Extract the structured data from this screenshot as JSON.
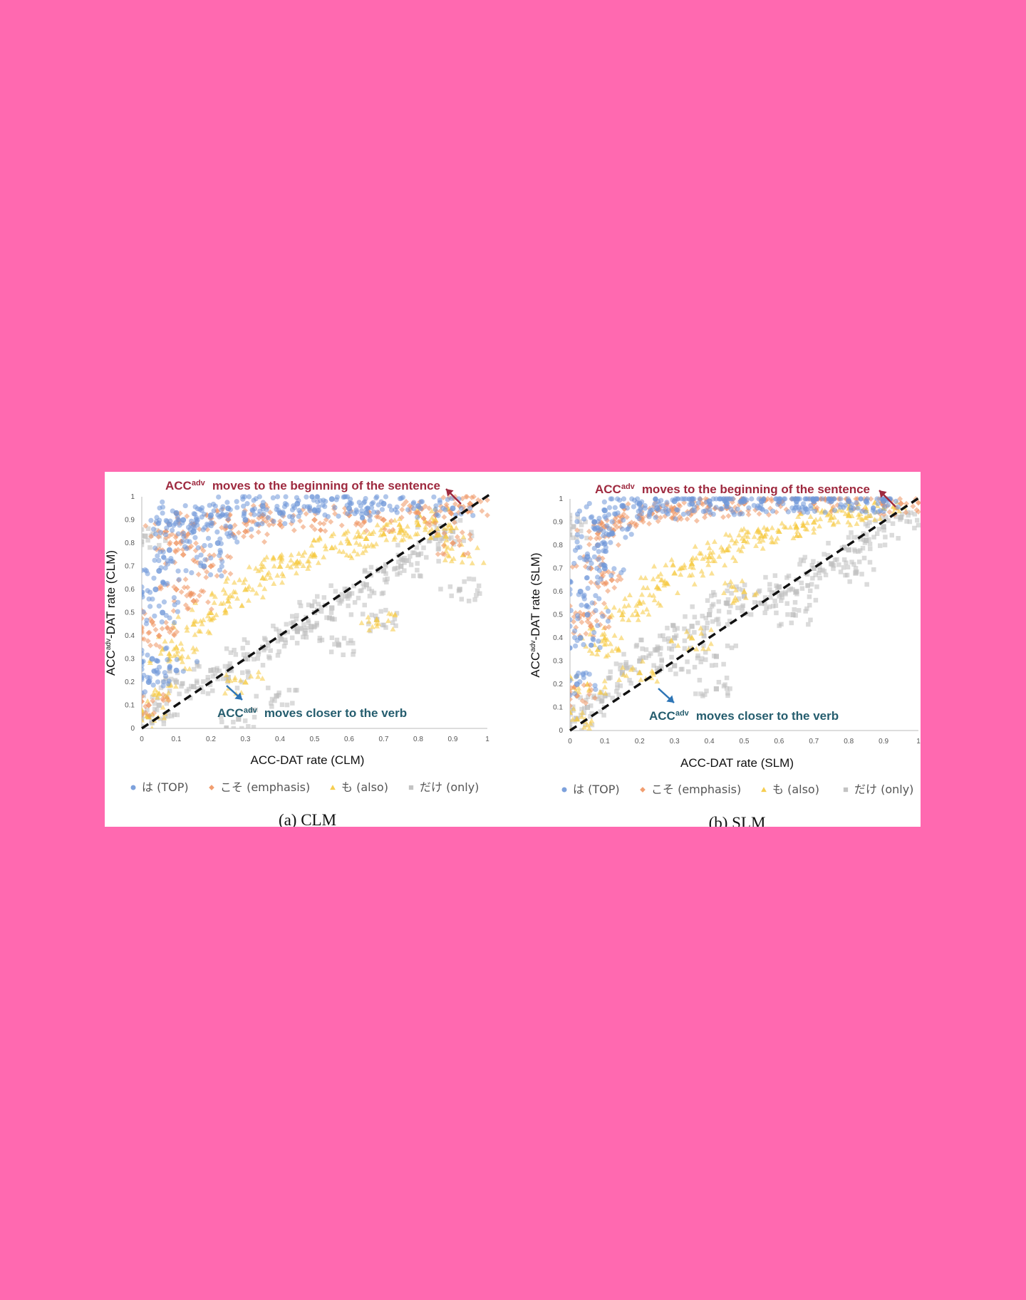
{
  "colors": {
    "background": "#ff69b0",
    "series": [
      "#6f97d8",
      "#ef9460",
      "#f5c93e",
      "#bdbdbd"
    ],
    "diagonal": "#111111",
    "annotation_top": "#9e2a3f",
    "annotation_bottom": "#255d6e",
    "arrow_top": "#9e2a3f",
    "arrow_bottom": "#2e75b6"
  },
  "chart_data": [
    {
      "type": "scatter",
      "caption": "(a) CLM",
      "xlabel": "ACC-DAT rate (CLM)",
      "ylabel_base": "ACC",
      "ylabel_sup": "adv",
      "ylabel_rest": "-DAT rate (CLM)",
      "xlim": [
        0,
        1
      ],
      "ylim": [
        0,
        1
      ],
      "xticks": [
        "0",
        "0.1",
        "0.2",
        "0.3",
        "0.4",
        "0.5",
        "0.6",
        "0.7",
        "0.8",
        "0.9",
        "1"
      ],
      "yticks": [
        "0",
        "0.1",
        "0.2",
        "0.3",
        "0.4",
        "0.5",
        "0.6",
        "0.7",
        "0.8",
        "0.9",
        "1"
      ],
      "grid": false,
      "reference_line": "y = x (dashed)",
      "legend_position": "bottom",
      "series": [
        {
          "name": "は (TOP)",
          "marker": "circle",
          "spread": "mostly above diagonal, dense near y 0.85-1.0",
          "points": [
            [
              0.02,
              0.2
            ],
            [
              0.04,
              0.6
            ],
            [
              0.05,
              0.68
            ],
            [
              0.06,
              0.5
            ],
            [
              0.08,
              0.88
            ],
            [
              0.1,
              0.93
            ],
            [
              0.12,
              0.9
            ],
            [
              0.15,
              0.85
            ],
            [
              0.2,
              0.92
            ],
            [
              0.25,
              0.95
            ],
            [
              0.3,
              0.9
            ],
            [
              0.35,
              0.96
            ],
            [
              0.4,
              0.93
            ],
            [
              0.45,
              0.97
            ],
            [
              0.5,
              0.94
            ],
            [
              0.55,
              0.99
            ],
            [
              0.6,
              0.95
            ],
            [
              0.65,
              0.93
            ],
            [
              0.7,
              0.97
            ],
            [
              0.8,
              0.96
            ],
            [
              0.9,
              0.95
            ],
            [
              0.08,
              0.77
            ],
            [
              0.1,
              0.25
            ],
            [
              0.03,
              0.3
            ],
            [
              0.18,
              0.7
            ],
            [
              0.22,
              0.8
            ]
          ]
        },
        {
          "name": "こそ (emphasis)",
          "marker": "diamond",
          "spread": "mostly above diagonal, dense near y 0.8-1.0",
          "points": [
            [
              0.02,
              0.1
            ],
            [
              0.03,
              0.46
            ],
            [
              0.05,
              0.4
            ],
            [
              0.07,
              0.85
            ],
            [
              0.1,
              0.8
            ],
            [
              0.12,
              0.75
            ],
            [
              0.15,
              0.88
            ],
            [
              0.2,
              0.7
            ],
            [
              0.25,
              0.9
            ],
            [
              0.3,
              0.85
            ],
            [
              0.35,
              0.92
            ],
            [
              0.4,
              0.88
            ],
            [
              0.5,
              0.9
            ],
            [
              0.6,
              0.92
            ],
            [
              0.7,
              0.9
            ],
            [
              0.8,
              0.93
            ],
            [
              0.85,
              0.92
            ],
            [
              0.92,
              0.96
            ],
            [
              0.95,
              0.97
            ],
            [
              0.9,
              0.8
            ],
            [
              0.1,
              0.6
            ],
            [
              0.15,
              0.55
            ]
          ]
        },
        {
          "name": "も (also)",
          "marker": "triangle",
          "spread": "between diagonal and top band",
          "points": [
            [
              0.02,
              0.05
            ],
            [
              0.05,
              0.15
            ],
            [
              0.08,
              0.3
            ],
            [
              0.1,
              0.35
            ],
            [
              0.15,
              0.45
            ],
            [
              0.2,
              0.5
            ],
            [
              0.25,
              0.55
            ],
            [
              0.3,
              0.6
            ],
            [
              0.35,
              0.65
            ],
            [
              0.4,
              0.7
            ],
            [
              0.45,
              0.72
            ],
            [
              0.5,
              0.75
            ],
            [
              0.55,
              0.78
            ],
            [
              0.6,
              0.8
            ],
            [
              0.65,
              0.82
            ],
            [
              0.7,
              0.84
            ],
            [
              0.75,
              0.86
            ],
            [
              0.8,
              0.88
            ],
            [
              0.85,
              0.9
            ],
            [
              0.93,
              0.75
            ],
            [
              0.88,
              0.83
            ],
            [
              0.68,
              0.47
            ],
            [
              0.3,
              0.2
            ]
          ]
        },
        {
          "name": "だけ (only)",
          "marker": "square",
          "spread": "near and below diagonal",
          "points": [
            [
              0.01,
              0.83
            ],
            [
              0.02,
              0.05
            ],
            [
              0.05,
              0.1
            ],
            [
              0.1,
              0.2
            ],
            [
              0.15,
              0.18
            ],
            [
              0.2,
              0.25
            ],
            [
              0.25,
              0.22
            ],
            [
              0.28,
              0.04
            ],
            [
              0.3,
              0.3
            ],
            [
              0.35,
              0.35
            ],
            [
              0.39,
              0.14
            ],
            [
              0.4,
              0.4
            ],
            [
              0.45,
              0.42
            ],
            [
              0.5,
              0.5
            ],
            [
              0.55,
              0.52
            ],
            [
              0.6,
              0.58
            ],
            [
              0.65,
              0.62
            ],
            [
              0.7,
              0.68
            ],
            [
              0.75,
              0.7
            ],
            [
              0.8,
              0.75
            ],
            [
              0.85,
              0.82
            ],
            [
              0.9,
              0.85
            ],
            [
              0.92,
              0.6
            ],
            [
              0.49,
              0.44
            ],
            [
              0.57,
              0.36
            ],
            [
              0.68,
              0.47
            ]
          ]
        }
      ],
      "annotations": [
        {
          "base": "ACC",
          "sup": "adv",
          "text": "moves to the beginning of the sentence",
          "position": "top"
        },
        {
          "base": "ACC",
          "sup": "adv",
          "text": "moves closer to the verb",
          "position": "bottom"
        }
      ]
    },
    {
      "type": "scatter",
      "caption": "(b) SLM",
      "xlabel": "ACC-DAT rate (SLM)",
      "ylabel_base": "ACC",
      "ylabel_sup": "adv",
      "ylabel_rest": "-DAT rate (SLM)",
      "xlim": [
        0,
        1
      ],
      "ylim": [
        0,
        1
      ],
      "xticks": [
        "0",
        "0.1",
        "0.2",
        "0.3",
        "0.4",
        "0.5",
        "0.6",
        "0.7",
        "0.8",
        "0.9",
        "1"
      ],
      "yticks": [
        "0",
        "0.1",
        "0.2",
        "0.3",
        "0.4",
        "0.5",
        "0.6",
        "0.7",
        "0.8",
        "0.9",
        "1"
      ],
      "grid": false,
      "reference_line": "y = x (dashed)",
      "legend_position": "bottom",
      "series": [
        {
          "name": "は (TOP)",
          "marker": "circle",
          "spread": "mostly above diagonal, dense near y 0.9-1.0",
          "points": [
            [
              0.02,
              0.2
            ],
            [
              0.03,
              0.6
            ],
            [
              0.05,
              0.75
            ],
            [
              0.07,
              0.9
            ],
            [
              0.1,
              0.95
            ],
            [
              0.15,
              0.97
            ],
            [
              0.2,
              0.98
            ],
            [
              0.25,
              0.96
            ],
            [
              0.3,
              0.99
            ],
            [
              0.35,
              0.98
            ],
            [
              0.4,
              0.99
            ],
            [
              0.45,
              0.98
            ],
            [
              0.5,
              0.99
            ],
            [
              0.55,
              0.99
            ],
            [
              0.6,
              0.99
            ],
            [
              0.65,
              0.99
            ],
            [
              0.7,
              0.99
            ],
            [
              0.75,
              0.99
            ],
            [
              0.8,
              0.99
            ],
            [
              0.85,
              0.99
            ],
            [
              0.9,
              0.99
            ],
            [
              0.05,
              0.5
            ],
            [
              0.08,
              0.8
            ],
            [
              0.12,
              0.85
            ],
            [
              0.03,
              0.4
            ],
            [
              0.1,
              0.7
            ]
          ]
        },
        {
          "name": "こそ (emphasis)",
          "marker": "diamond",
          "spread": "mostly above diagonal, dense near y 0.85-1.0",
          "points": [
            [
              0.02,
              0.15
            ],
            [
              0.04,
              0.5
            ],
            [
              0.06,
              0.7
            ],
            [
              0.08,
              0.85
            ],
            [
              0.1,
              0.88
            ],
            [
              0.15,
              0.92
            ],
            [
              0.2,
              0.93
            ],
            [
              0.25,
              0.95
            ],
            [
              0.3,
              0.96
            ],
            [
              0.35,
              0.95
            ],
            [
              0.4,
              0.97
            ],
            [
              0.45,
              0.96
            ],
            [
              0.5,
              0.98
            ],
            [
              0.6,
              0.98
            ],
            [
              0.7,
              0.98
            ],
            [
              0.8,
              0.99
            ],
            [
              0.9,
              0.99
            ],
            [
              0.95,
              0.98
            ],
            [
              0.06,
              0.45
            ],
            [
              0.12,
              0.65
            ]
          ]
        },
        {
          "name": "も (also)",
          "marker": "triangle",
          "spread": "between diagonal and top band",
          "points": [
            [
              0.02,
              0.05
            ],
            [
              0.05,
              0.2
            ],
            [
              0.08,
              0.35
            ],
            [
              0.1,
              0.4
            ],
            [
              0.15,
              0.5
            ],
            [
              0.2,
              0.55
            ],
            [
              0.25,
              0.62
            ],
            [
              0.3,
              0.68
            ],
            [
              0.35,
              0.72
            ],
            [
              0.4,
              0.75
            ],
            [
              0.45,
              0.78
            ],
            [
              0.5,
              0.82
            ],
            [
              0.55,
              0.84
            ],
            [
              0.6,
              0.86
            ],
            [
              0.65,
              0.88
            ],
            [
              0.7,
              0.9
            ],
            [
              0.75,
              0.92
            ],
            [
              0.8,
              0.93
            ],
            [
              0.85,
              0.95
            ],
            [
              0.9,
              0.96
            ],
            [
              0.2,
              0.25
            ],
            [
              0.35,
              0.4
            ],
            [
              0.5,
              0.6
            ]
          ]
        },
        {
          "name": "だけ (only)",
          "marker": "square",
          "spread": "near and below diagonal",
          "points": [
            [
              0.01,
              0.88
            ],
            [
              0.02,
              0.05
            ],
            [
              0.05,
              0.1
            ],
            [
              0.1,
              0.15
            ],
            [
              0.15,
              0.25
            ],
            [
              0.2,
              0.3
            ],
            [
              0.25,
              0.35
            ],
            [
              0.3,
              0.4
            ],
            [
              0.35,
              0.45
            ],
            [
              0.4,
              0.5
            ],
            [
              0.42,
              0.18
            ],
            [
              0.45,
              0.55
            ],
            [
              0.5,
              0.58
            ],
            [
              0.55,
              0.55
            ],
            [
              0.6,
              0.62
            ],
            [
              0.65,
              0.6
            ],
            [
              0.7,
              0.7
            ],
            [
              0.75,
              0.72
            ],
            [
              0.8,
              0.78
            ],
            [
              0.85,
              0.82
            ],
            [
              0.9,
              0.88
            ],
            [
              0.95,
              0.92
            ],
            [
              0.64,
              0.5
            ],
            [
              0.82,
              0.68
            ],
            [
              0.3,
              0.28
            ],
            [
              0.42,
              0.32
            ]
          ]
        }
      ],
      "annotations": [
        {
          "base": "ACC",
          "sup": "adv",
          "text": "moves to the beginning of the sentence",
          "position": "top"
        },
        {
          "base": "ACC",
          "sup": "adv",
          "text": "moves closer to the verb",
          "position": "bottom"
        }
      ]
    }
  ]
}
